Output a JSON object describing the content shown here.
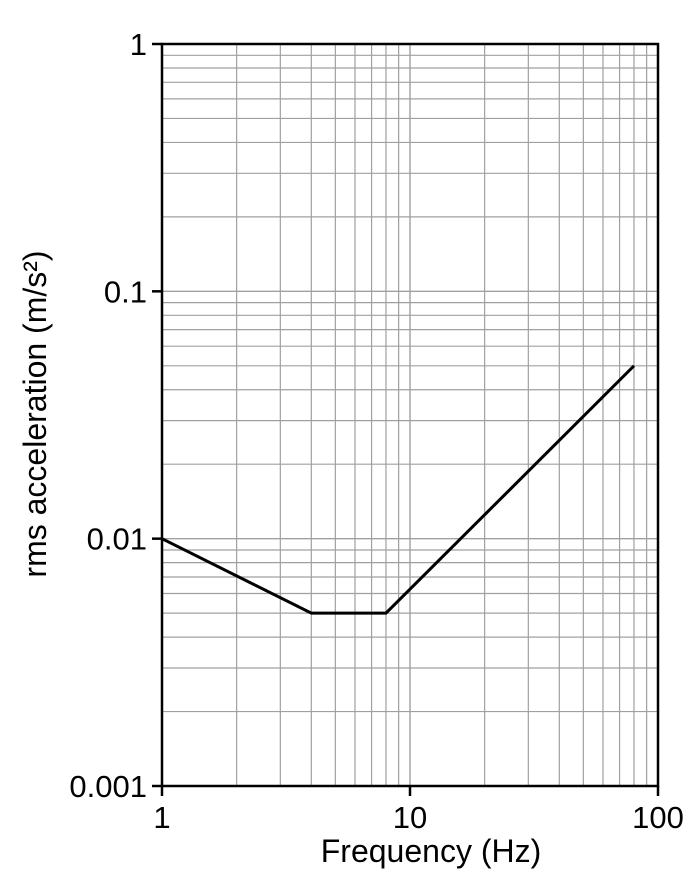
{
  "chart_data": {
    "type": "line",
    "title": "",
    "xlabel": "Frequency (Hz)",
    "ylabel": "rms acceleration (m/s²)",
    "x_scale": "log",
    "y_scale": "log",
    "xlim": [
      1,
      100
    ],
    "ylim": [
      0.001,
      1
    ],
    "x_ticks": [
      {
        "value": 1,
        "label": "1"
      },
      {
        "value": 10,
        "label": "10"
      },
      {
        "value": 100,
        "label": "100"
      }
    ],
    "y_ticks": [
      {
        "value": 0.001,
        "label": "0.001"
      },
      {
        "value": 0.01,
        "label": "0.01"
      },
      {
        "value": 0.1,
        "label": "0.1"
      },
      {
        "value": 1,
        "label": "1"
      }
    ],
    "grid": true,
    "legend": "none",
    "colors": {
      "line": "#000000",
      "grid": "#a0a0a0",
      "frame": "#000000"
    },
    "series": [
      {
        "x": [
          1,
          4,
          8,
          80
        ],
        "y": [
          0.01,
          0.005,
          0.005,
          0.05
        ]
      }
    ]
  }
}
